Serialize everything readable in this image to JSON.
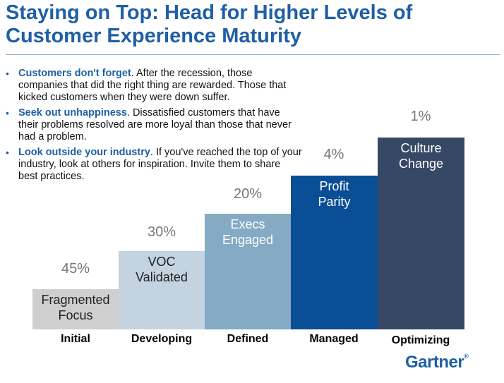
{
  "slide": {
    "title_line1": "Staying on Top: Head for Higher Levels of",
    "title_line2": "Customer Experience Maturity"
  },
  "bullets": [
    {
      "lead": "Customers don't forget",
      "text": ". After the recession, those companies that did the right thing are rewarded. Those that kicked customers when they were down suffer."
    },
    {
      "lead": "Seek out unhappiness",
      "text": ". Dissatisfied customers that have their problems resolved are more loyal than those that never had a problem."
    },
    {
      "lead": "Look outside your industry",
      "text": ". If you've reached the top of your industry, look at others for inspiration. Invite them to share best practices."
    }
  ],
  "stages": [
    {
      "name": "Initial",
      "percent": "45%",
      "label": "Fragmented\nFocus",
      "color": "#cfcfcf",
      "text_color": "#222222"
    },
    {
      "name": "Developing",
      "percent": "30%",
      "label": "VOC\nValidated",
      "color": "#c3d3e0",
      "text_color": "#222222"
    },
    {
      "name": "Defined",
      "percent": "20%",
      "label": "Execs\nEngaged",
      "color": "#84aac4",
      "text_color": "#ffffff"
    },
    {
      "name": "Managed",
      "percent": "4%",
      "label": "Profit\nParity",
      "color": "#0a4f95",
      "text_color": "#ffffff"
    },
    {
      "name": "Optimizing",
      "percent": "1%",
      "label": "Culture\nChange",
      "color": "#374866",
      "text_color": "#ffffff"
    }
  ],
  "logo": {
    "text": "Gartner",
    "mark": "®"
  }
}
